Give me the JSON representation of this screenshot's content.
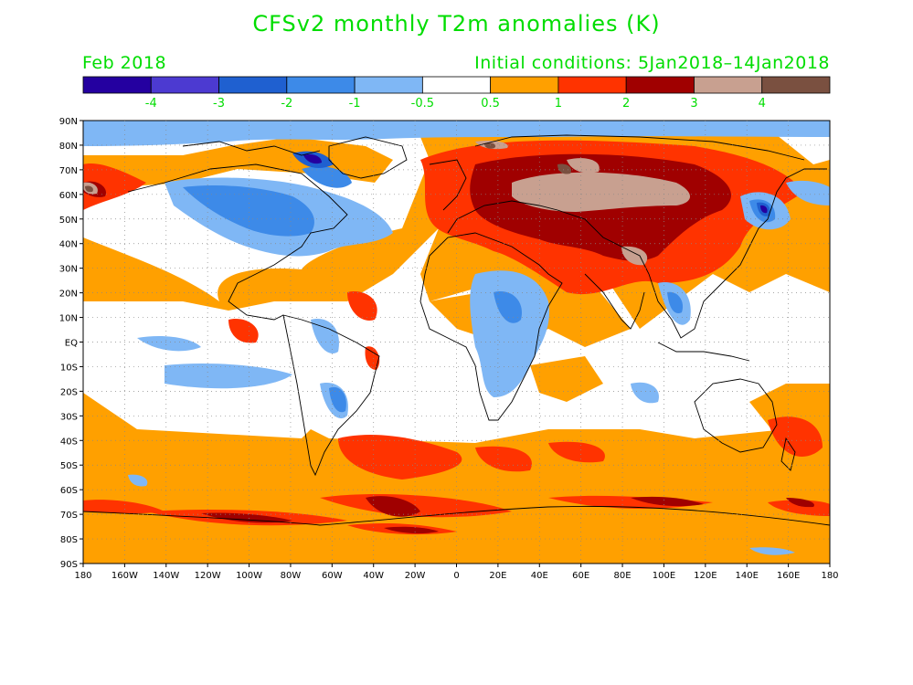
{
  "title": "CFSv2 monthly T2m anomalies (K)",
  "subtitle_left": "Feb 2018",
  "subtitle_right": "Initial conditions: 5Jan2018–14Jan2018",
  "colorbar": {
    "colors": [
      "#2400a0",
      "#4c3ad1",
      "#1f60d0",
      "#3d8ae8",
      "#7fb7f5",
      "#ffffff",
      "#ffa000",
      "#ff3300",
      "#a00000",
      "#c8a090",
      "#7a5040"
    ],
    "labels": [
      "-4",
      "-3",
      "-2",
      "-1",
      "-0.5",
      "0.5",
      "1",
      "2",
      "3",
      "4"
    ]
  },
  "axes": {
    "lat_labels": [
      "90N",
      "80N",
      "70N",
      "60N",
      "50N",
      "40N",
      "30N",
      "20N",
      "10N",
      "EQ",
      "10S",
      "20S",
      "30S",
      "40S",
      "50S",
      "60S",
      "70S",
      "80S",
      "90S"
    ],
    "lon_labels": [
      "180",
      "160W",
      "140W",
      "120W",
      "100W",
      "80W",
      "60W",
      "40W",
      "20W",
      "0",
      "20E",
      "40E",
      "60E",
      "80E",
      "100E",
      "120E",
      "140E",
      "160E",
      "180"
    ]
  },
  "map_colors": {
    "orange": "#ffa000",
    "red": "#ff3300",
    "darkred": "#a00000",
    "pink": "#c8a090",
    "brown": "#7a5040",
    "lightblue": "#7fb7f5",
    "blue": "#3d8ae8",
    "midblue": "#1f60d0",
    "deepblue": "#2400a0"
  }
}
